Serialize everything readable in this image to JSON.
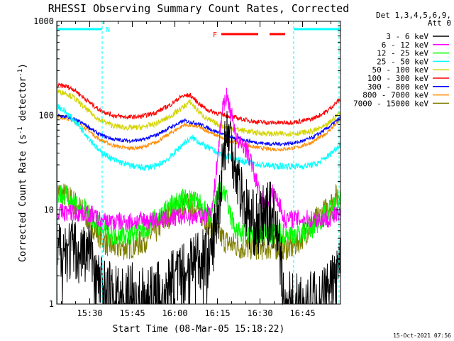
{
  "chart_data": {
    "type": "line",
    "title": "RHESSI Observing Summary Count Rates, Corrected",
    "xlabel": "Start Time (08-Mar-05 15:18:22)",
    "ylabel_prefix": "Corrected Count Rate (s",
    "ylabel_sup1": "-1",
    "ylabel_mid": " detector",
    "ylabel_sup2": "-1",
    "ylabel_suffix": ")",
    "y_scale": "log",
    "ylim": [
      1,
      1000
    ],
    "xlim": [
      "15:18:22",
      "16:58:40"
    ],
    "x_ticks": [
      "15:30",
      "15:45",
      "16:00",
      "16:15",
      "16:30",
      "16:45"
    ],
    "y_ticks": [
      "1",
      "10",
      "100",
      "1000"
    ],
    "legend_header": [
      "Det 1,3,4,5,6,9,",
      "Att 0"
    ],
    "series": [
      {
        "name": "3 - 6 keV",
        "color": "#000000",
        "t": [
          0,
          12,
          14,
          16,
          23,
          27,
          30,
          33,
          36,
          40,
          44,
          48,
          50,
          54,
          57,
          59,
          61,
          63,
          65,
          68,
          71,
          73,
          76,
          78,
          80,
          82,
          85,
          87,
          89,
          91,
          93,
          97,
          100
        ],
        "v": [
          3.8,
          3.6,
          2.0,
          1.5,
          1.2,
          1.3,
          1.1,
          1.1,
          1.3,
          1.7,
          2.1,
          2.8,
          3.2,
          3.0,
          10,
          55,
          60,
          30,
          15,
          8,
          6.5,
          9,
          9,
          7,
          1,
          1,
          1,
          1,
          1,
          1,
          1,
          1.5,
          2.8
        ]
      },
      {
        "name": "6 - 12 keV",
        "color": "#ff00ff",
        "t": [
          0,
          12,
          16,
          25,
          35,
          45,
          52,
          55,
          57,
          58.5,
          60,
          62,
          64,
          66,
          67.5,
          70,
          72,
          74,
          76,
          78,
          80,
          85,
          90,
          95,
          100
        ],
        "v": [
          9.5,
          9.0,
          7.5,
          7.5,
          7.8,
          8.5,
          8.5,
          11,
          45,
          130,
          160,
          90,
          50,
          48,
          40,
          22,
          13,
          12,
          15,
          13,
          8,
          8,
          8,
          8,
          9
        ]
      },
      {
        "name": "12 - 25 keV",
        "color": "#00ff00",
        "t": [
          0,
          5,
          10,
          14,
          18,
          25,
          30,
          35,
          40,
          45,
          50,
          54,
          57,
          59,
          61,
          63,
          66,
          70,
          74,
          77,
          80,
          85,
          90,
          95,
          100
        ],
        "v": [
          15,
          13,
          10,
          7,
          5.5,
          5.5,
          6,
          8,
          11,
          13,
          12,
          8,
          15,
          16,
          9,
          6,
          5.5,
          5.5,
          5.5,
          5.5,
          5.5,
          5.5,
          6.5,
          9,
          13
        ]
      },
      {
        "name": "25 - 50 keV",
        "color": "#00ffff",
        "t": [
          0,
          3,
          6,
          10,
          15,
          20,
          25,
          30,
          35,
          40,
          45,
          48,
          52,
          57,
          62,
          67,
          72,
          77,
          82,
          87,
          92,
          96,
          100
        ],
        "v": [
          130,
          110,
          90,
          65,
          42,
          34,
          30,
          28,
          29,
          36,
          52,
          58,
          48,
          40,
          35,
          32,
          30,
          29,
          29,
          29,
          31,
          38,
          50
        ]
      },
      {
        "name": "50 - 100 keV",
        "color": "#d4d400",
        "t": [
          0,
          3,
          6,
          10,
          15,
          20,
          25,
          30,
          35,
          40,
          44,
          47,
          50,
          53,
          57,
          60,
          65,
          70,
          75,
          80,
          85,
          90,
          95,
          100
        ],
        "v": [
          180,
          175,
          155,
          120,
          90,
          78,
          74,
          75,
          82,
          98,
          120,
          140,
          110,
          92,
          80,
          75,
          70,
          66,
          64,
          64,
          65,
          68,
          78,
          110
        ]
      },
      {
        "name": "100 - 300 keV",
        "color": "#ff0000",
        "t": [
          0,
          3,
          6,
          10,
          15,
          20,
          25,
          30,
          35,
          40,
          44,
          47,
          50,
          53,
          57,
          60,
          65,
          70,
          75,
          80,
          85,
          90,
          95,
          100
        ],
        "v": [
          210,
          205,
          190,
          150,
          115,
          100,
          96,
          98,
          108,
          130,
          160,
          165,
          135,
          115,
          105,
          100,
          92,
          86,
          84,
          84,
          86,
          92,
          110,
          150
        ]
      },
      {
        "name": "300 - 800 keV",
        "color": "#0000ff",
        "t": [
          0,
          5,
          10,
          15,
          20,
          25,
          30,
          35,
          40,
          45,
          50,
          55,
          60,
          65,
          70,
          75,
          80,
          85,
          90,
          95,
          100
        ],
        "v": [
          100,
          95,
          80,
          63,
          56,
          54,
          55,
          62,
          75,
          88,
          82,
          70,
          61,
          56,
          52,
          50,
          50,
          52,
          58,
          72,
          95
        ]
      },
      {
        "name": "800 - 7000 keV",
        "color": "#ff8c00",
        "t": [
          0,
          5,
          10,
          15,
          20,
          25,
          30,
          35,
          40,
          45,
          50,
          55,
          60,
          65,
          70,
          75,
          80,
          85,
          90,
          95,
          100
        ],
        "v": [
          98,
          90,
          74,
          56,
          48,
          45,
          46,
          52,
          65,
          80,
          76,
          64,
          55,
          50,
          46,
          44,
          44,
          46,
          52,
          65,
          90
        ]
      },
      {
        "name": "7000 - 15000 keV",
        "color": "#808000",
        "t": [
          0,
          5,
          10,
          14,
          17,
          20,
          25,
          30,
          35,
          40,
          45,
          50,
          54,
          57,
          60,
          65,
          70,
          75,
          80,
          83,
          86,
          90,
          95,
          100
        ],
        "v": [
          16,
          13,
          9,
          6,
          4.5,
          4,
          4,
          4.5,
          6,
          9,
          12,
          10,
          7,
          5.5,
          4.5,
          4,
          4,
          4,
          4,
          4,
          5,
          7,
          10,
          16
        ]
      }
    ],
    "flag_label": "F",
    "flag_color": "#ff0000",
    "flag_segments_minutes": [
      [
        58,
        71
      ],
      [
        75,
        80.5
      ]
    ],
    "night_label": "N",
    "night_color": "#00ffff",
    "night_segments_minutes": [
      [
        0,
        16
      ],
      [
        83.5,
        100
      ]
    ],
    "night_boundaries_minutes": [
      16,
      83.5,
      99.5
    ],
    "timestamp": "15-Oct-2021 07:56"
  }
}
